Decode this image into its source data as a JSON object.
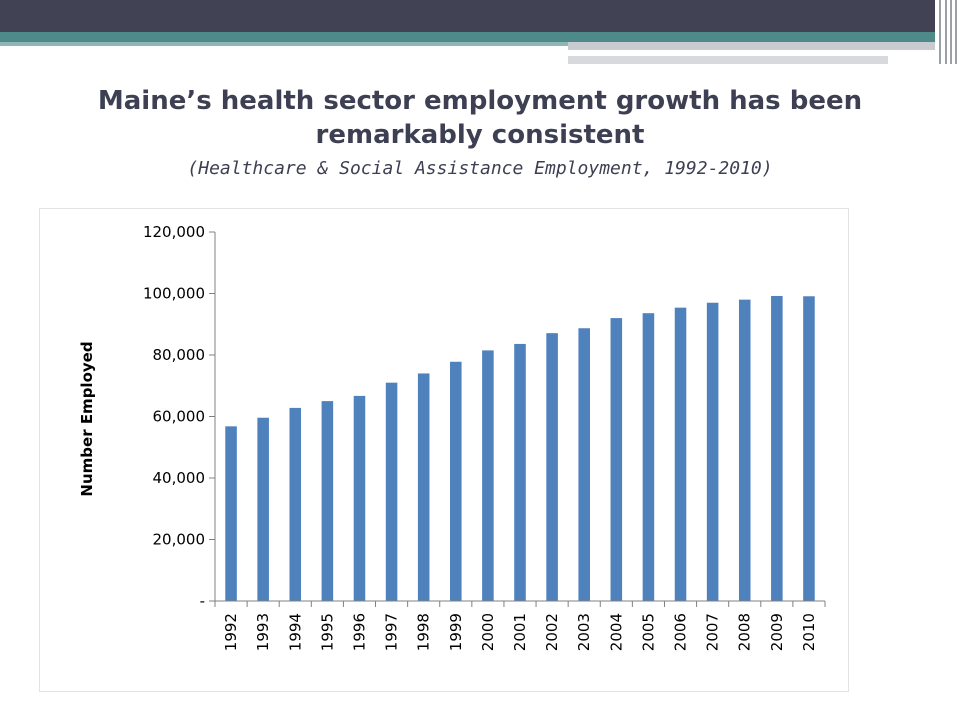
{
  "slide": {
    "title": "Maine’s health sector employment growth has been remarkably consistent",
    "subtitle": "(Healthcare & Social Assistance Employment, 1992-2010)"
  },
  "colors": {
    "bar": "#4f81bd",
    "header_dark": "#414254",
    "header_teal": "#4f8a8b"
  },
  "chart_data": {
    "type": "bar",
    "title": "",
    "xlabel": "",
    "ylabel": "Number Employed",
    "ylim": [
      0,
      120000
    ],
    "yticks": [
      {
        "value": 0,
        "label": "-"
      },
      {
        "value": 20000,
        "label": "20,000"
      },
      {
        "value": 40000,
        "label": "40,000"
      },
      {
        "value": 60000,
        "label": "60,000"
      },
      {
        "value": 80000,
        "label": "80,000"
      },
      {
        "value": 100000,
        "label": "100,000"
      },
      {
        "value": 120000,
        "label": "120,000"
      }
    ],
    "categories": [
      "1992",
      "1993",
      "1994",
      "1995",
      "1996",
      "1997",
      "1998",
      "1999",
      "2000",
      "2001",
      "2002",
      "2003",
      "2004",
      "2005",
      "2006",
      "2007",
      "2008",
      "2009",
      "2010"
    ],
    "values": [
      56800,
      59600,
      62800,
      65000,
      66700,
      71000,
      74000,
      77800,
      81500,
      83600,
      87100,
      88700,
      92000,
      93600,
      95400,
      97000,
      98000,
      99200,
      99100
    ],
    "grid": false,
    "legend": "none"
  }
}
